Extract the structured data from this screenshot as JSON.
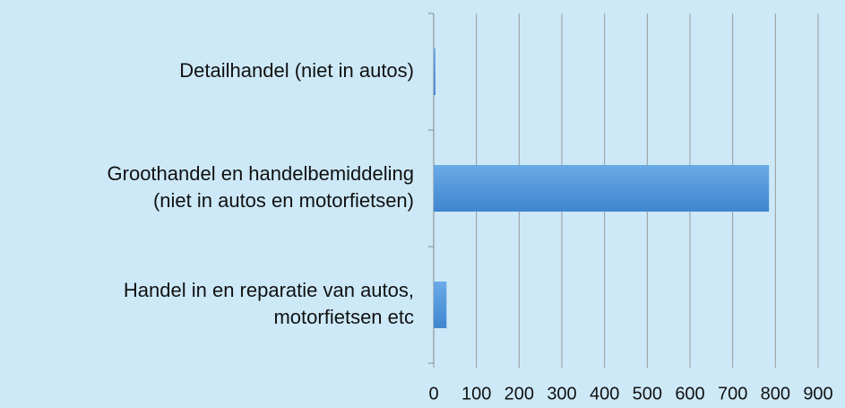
{
  "chart_data": {
    "type": "bar",
    "orientation": "horizontal",
    "categories": [
      "Detailhandel (niet in autos)",
      "Groothandel en handelbemiddeling\n(niet in autos en motorfietsen)",
      "Handel in en reparatie van autos,\nmotorfietsen etc"
    ],
    "values": [
      4,
      785,
      30
    ],
    "color": "#4f93d8",
    "xlim": [
      0,
      900
    ],
    "xticks": [
      0,
      100,
      200,
      300,
      400,
      500,
      600,
      700,
      800,
      900
    ],
    "grid": true
  }
}
